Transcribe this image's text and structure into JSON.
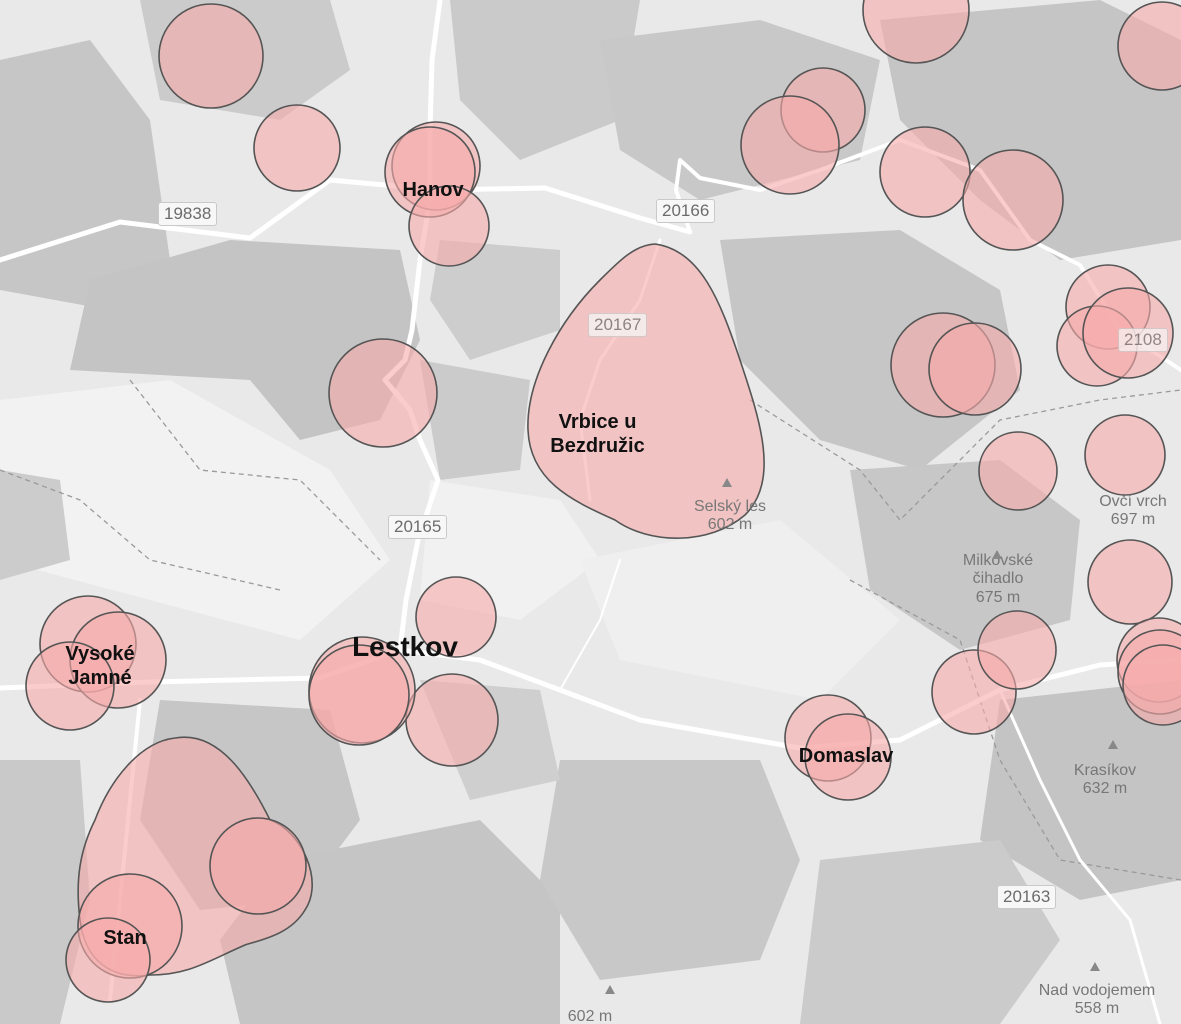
{
  "map": {
    "places": [
      {
        "id": "hanov",
        "name": "Hanov"
      },
      {
        "id": "vrbice",
        "name": "Vrbice u Bezdružic"
      },
      {
        "id": "lestkov",
        "name": "Lestkov"
      },
      {
        "id": "vysoke-jamne",
        "name": "Vysoké Jamné"
      },
      {
        "id": "domaslav",
        "name": "Domaslav"
      },
      {
        "id": "stan",
        "name": "Stan"
      }
    ],
    "roads": [
      "19838",
      "20166",
      "20167",
      "20165",
      "20163",
      "2108"
    ],
    "peaks": [
      {
        "name": "Selský les",
        "elev": "602 m"
      },
      {
        "name": "Ovčí vrch",
        "elev": "697 m"
      },
      {
        "name": "Milkovské čihadlo",
        "elev": "675 m"
      },
      {
        "name": "Krasíkov",
        "elev": "632 m"
      },
      {
        "name": "Nad vodojemem",
        "elev": "558 m"
      },
      {
        "name": "",
        "elev": "602 m"
      }
    ],
    "colors": {
      "background": "#e9e9e9",
      "forest": "#c8c8c8",
      "road": "#ffffff",
      "zone_fill": "#f6aaaa",
      "zone_stroke": "#555555"
    }
  }
}
